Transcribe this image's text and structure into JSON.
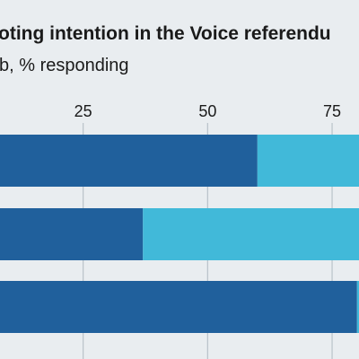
{
  "chart_data": {
    "type": "bar",
    "orientation": "horizontal",
    "stacked": true,
    "title": "oting intention in the Voice referendu",
    "subtitle": "b, % responding",
    "categories": [
      "",
      "",
      ""
    ],
    "xticks": [
      25,
      50,
      75
    ],
    "xlim": [
      8.3,
      80.4
    ],
    "grid": true,
    "series": [
      {
        "values": [
          60,
          37,
          80
        ],
        "color": "#20609c"
      },
      {
        "values": [
          23,
          46,
          3
        ],
        "color": "#41b9d9"
      }
    ]
  }
}
